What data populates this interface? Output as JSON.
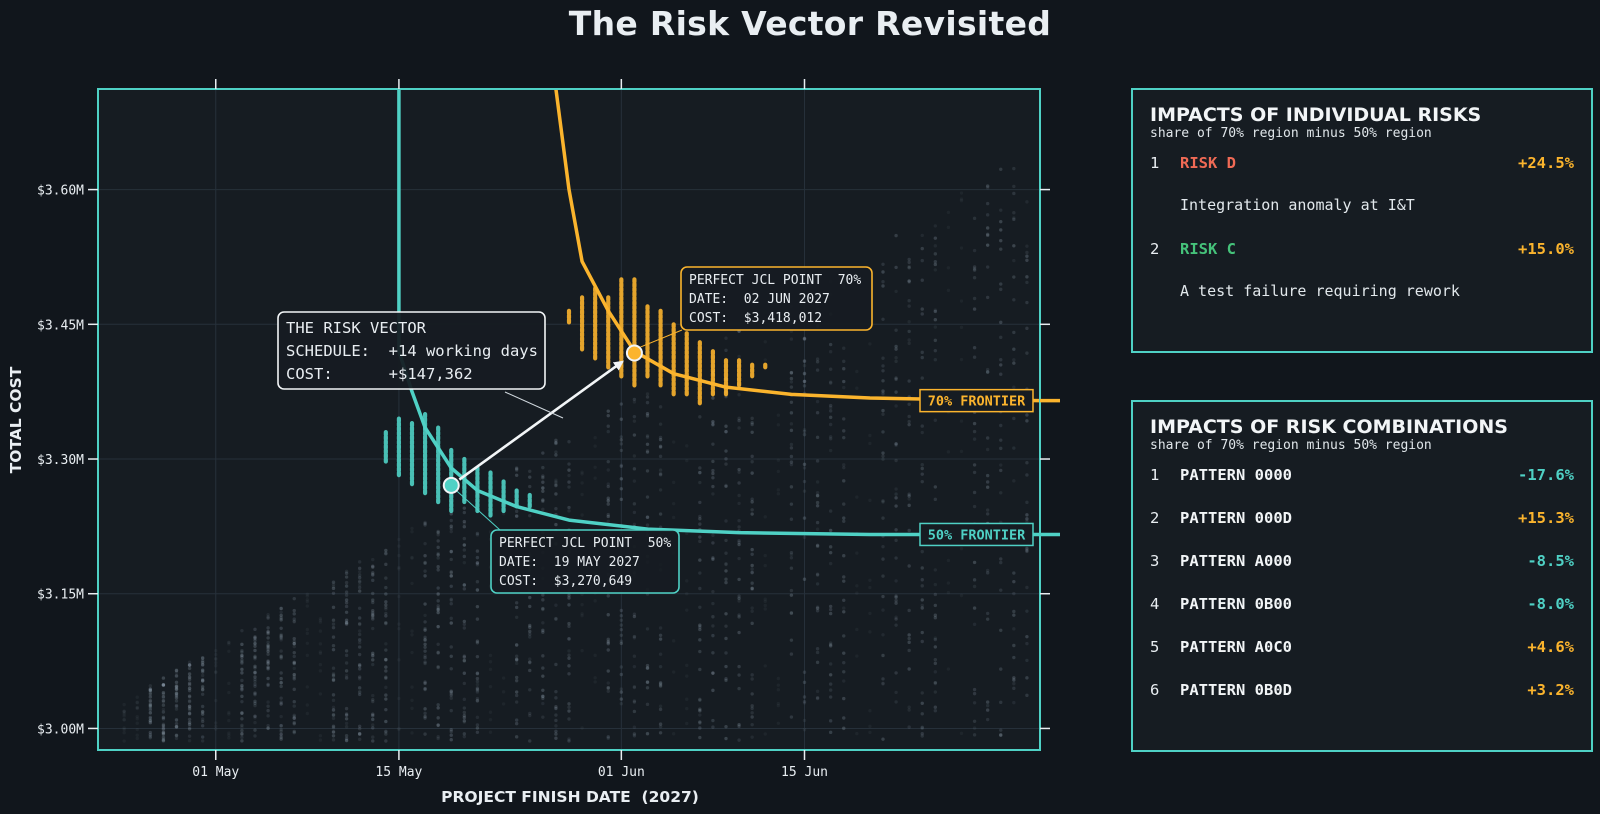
{
  "title": "The Risk Vector Revisited",
  "colors": {
    "background": "#11161c",
    "plot_bg": "#161c22",
    "teal": "#4fd1c5",
    "amber": "#fbb42d",
    "red": "#f06a55",
    "green": "#45c27a",
    "text": "#e9eef2"
  },
  "chart_data": {
    "type": "scatter",
    "xlabel": "PROJECT FINISH DATE  (2027)",
    "ylabel": "TOTAL COST",
    "xlim": [
      "2027-04-22",
      "2027-07-03"
    ],
    "ylim": [
      2.976,
      3.712
    ],
    "y_unit": "$M",
    "x_ticks": [
      {
        "date": "2027-05-01",
        "label": "01 May"
      },
      {
        "date": "2027-05-15",
        "label": "15 May"
      },
      {
        "date": "2027-06-01",
        "label": "01 Jun"
      },
      {
        "date": "2027-06-15",
        "label": "15 Jun"
      }
    ],
    "y_ticks": [
      {
        "value": 3.0,
        "label": "$3.00M"
      },
      {
        "value": 3.15,
        "label": "$3.15M"
      },
      {
        "value": 3.3,
        "label": "$3.30M"
      },
      {
        "value": 3.45,
        "label": "$3.45M"
      },
      {
        "value": 3.6,
        "label": "$3.60M"
      }
    ],
    "grid": true,
    "series": [
      {
        "name": "50% FRONTIER",
        "color": "#4fd1c5",
        "vertical_asymptote": "2027-05-15",
        "x": [
          "2027-05-15",
          "2027-05-16",
          "2027-05-17",
          "2027-05-19",
          "2027-05-21",
          "2027-05-24",
          "2027-05-28",
          "2027-06-03",
          "2027-06-10",
          "2027-06-20",
          "2027-07-03"
        ],
        "y": [
          3.42,
          3.375,
          3.335,
          3.29,
          3.265,
          3.247,
          3.232,
          3.222,
          3.218,
          3.216,
          3.216
        ]
      },
      {
        "name": "70% FRONTIER",
        "color": "#fbb42d",
        "vertical_asymptote": "2027-05-27",
        "x": [
          "2027-05-27",
          "2027-05-28",
          "2027-05-29",
          "2027-05-31",
          "2027-06-02",
          "2027-06-05",
          "2027-06-09",
          "2027-06-14",
          "2027-06-20",
          "2027-06-27",
          "2027-07-03"
        ],
        "y": [
          3.712,
          3.6,
          3.52,
          3.465,
          3.42,
          3.395,
          3.38,
          3.372,
          3.368,
          3.366,
          3.365
        ]
      }
    ],
    "points": [
      {
        "label": "PERFECT JCL POINT  50%",
        "date": "2027-05-19",
        "cost": 3270649,
        "date_text": "DATE:  19 MAY 2027",
        "cost_text": "COST:  $3,270,649",
        "color": "#4fd1c5"
      },
      {
        "label": "PERFECT JCL POINT  70%",
        "date": "2027-06-02",
        "cost": 3418012,
        "date_text": "DATE:  02 JUN 2027",
        "cost_text": "COST:  $3,418,012",
        "color": "#fbb42d"
      }
    ],
    "vector": {
      "title": "THE RISK VECTOR",
      "schedule": "SCHEDULE:  +14 working days",
      "cost": "COST:      +$147,362"
    },
    "frontier_labels": [
      "70% FRONTIER",
      "50% FRONTIER"
    ]
  },
  "panel1": {
    "title": "IMPACTS OF INDIVIDUAL RISKS",
    "subtitle": "share of 70% region minus 50% region",
    "items": [
      {
        "rank": "1",
        "name": "RISK D",
        "value": "+24.5%",
        "desc": "Integration anomaly at I&T",
        "name_color": "#f06a55",
        "value_color": "#fbb42d"
      },
      {
        "rank": "2",
        "name": "RISK C",
        "value": "+15.0%",
        "desc": "A test failure requiring rework",
        "name_color": "#45c27a",
        "value_color": "#fbb42d"
      }
    ]
  },
  "panel2": {
    "title": "IMPACTS OF RISK COMBINATIONS",
    "subtitle": "share of 70% region minus 50% region",
    "items": [
      {
        "rank": "1",
        "name": "PATTERN 0000",
        "value": "-17.6%",
        "value_color": "#4fd1c5"
      },
      {
        "rank": "2",
        "name": "PATTERN 000D",
        "value": "+15.3%",
        "value_color": "#fbb42d"
      },
      {
        "rank": "3",
        "name": "PATTERN A000",
        "value": "-8.5%",
        "value_color": "#4fd1c5"
      },
      {
        "rank": "4",
        "name": "PATTERN 0B00",
        "value": "-8.0%",
        "value_color": "#4fd1c5"
      },
      {
        "rank": "5",
        "name": "PATTERN A0C0",
        "value": "+4.6%",
        "value_color": "#fbb42d"
      },
      {
        "rank": "6",
        "name": "PATTERN 0B0D",
        "value": "+3.2%",
        "value_color": "#fbb42d"
      }
    ]
  }
}
